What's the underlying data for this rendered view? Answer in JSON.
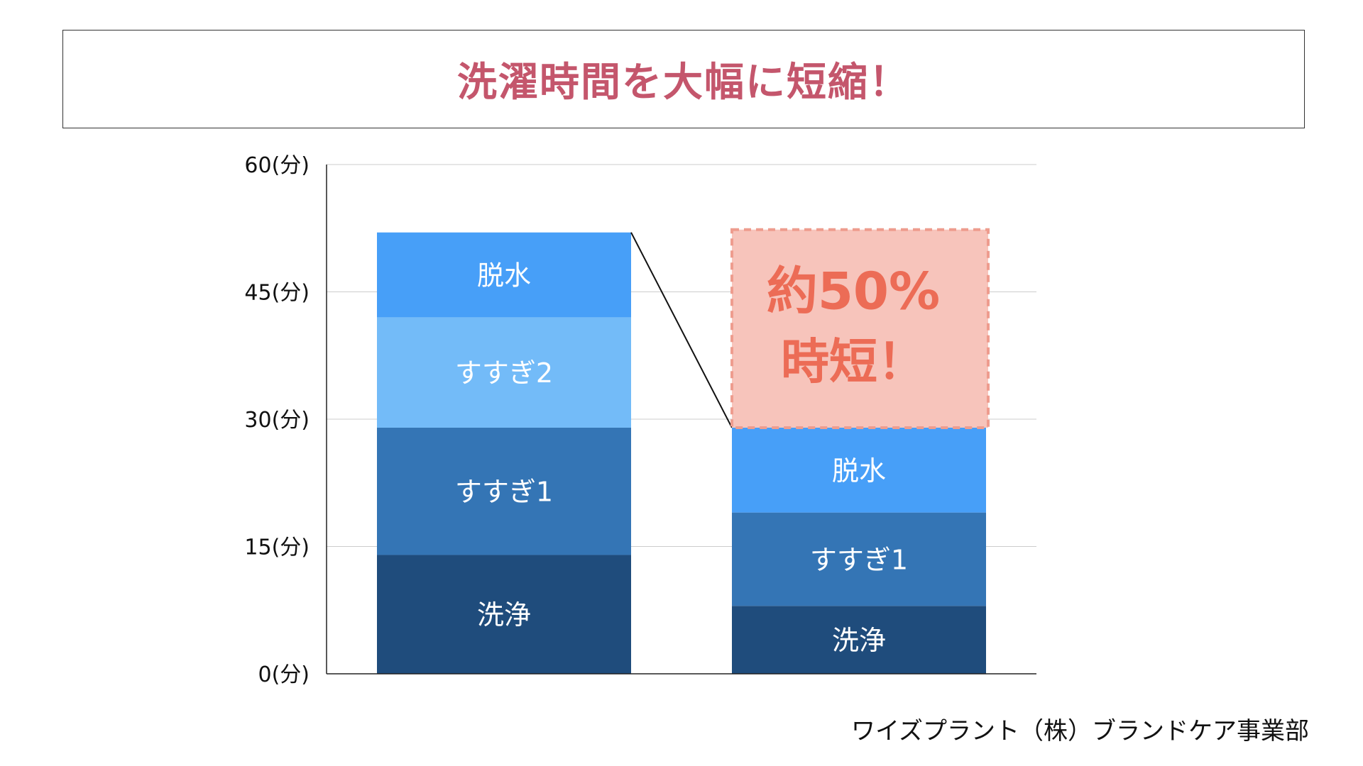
{
  "title": "洗濯時間を大幅に短縮！",
  "footer": "ワイズプラント（株）ブランドケア事業部",
  "callout": {
    "line1": "約50%",
    "line2": "時短！",
    "text_color": "#ec6c56",
    "fill_color": "#f7c4bb",
    "border_color": "#ee9c8e"
  },
  "colors": {
    "title": "#c4566c",
    "洗浄": "#1f4c7c",
    "すすぎ1": "#3475b5",
    "すすぎ2": "#73bbf8",
    "脱水": "#479ff8",
    "grid": "#cccccc",
    "axis": "#222222"
  },
  "chart_data": {
    "type": "bar",
    "stacked": true,
    "ylim": [
      0,
      60
    ],
    "yticks": [
      {
        "value": 0,
        "label": "0(分)"
      },
      {
        "value": 15,
        "label": "15(分)"
      },
      {
        "value": 30,
        "label": "30(分)"
      },
      {
        "value": 45,
        "label": "45(分)"
      },
      {
        "value": 60,
        "label": "60(分)"
      }
    ],
    "grid": true,
    "bars": [
      {
        "segments": [
          {
            "label": "洗浄",
            "value": 14
          },
          {
            "label": "すすぎ1",
            "value": 15
          },
          {
            "label": "すすぎ2",
            "value": 13
          },
          {
            "label": "脱水",
            "value": 10
          }
        ]
      },
      {
        "segments": [
          {
            "label": "洗浄",
            "value": 8
          },
          {
            "label": "すすぎ1",
            "value": 11
          },
          {
            "label": "脱水",
            "value": 10
          }
        ]
      }
    ]
  }
}
